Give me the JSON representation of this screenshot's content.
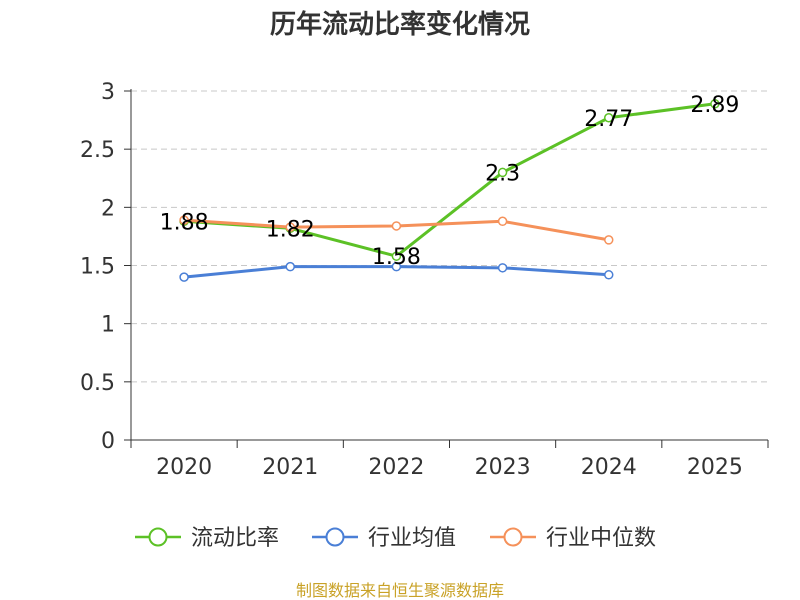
{
  "chart_data": {
    "type": "line",
    "title": "历年流动比率变化情况",
    "categories": [
      "2020",
      "2021",
      "2022",
      "2023",
      "2024",
      "2025"
    ],
    "ylim": [
      0,
      3
    ],
    "yticks": [
      "0",
      "0.5",
      "1",
      "1.5",
      "2",
      "2.5",
      "3"
    ],
    "grid": true,
    "legend_position": "bottom",
    "series": [
      {
        "name": "流动比率",
        "color": "#5cc126",
        "values": [
          1.88,
          1.82,
          1.58,
          2.3,
          2.77,
          2.89
        ],
        "labels": [
          "1.88",
          "1.82",
          "1.58",
          "2.3",
          "2.77",
          "2.89"
        ]
      },
      {
        "name": "行业均值",
        "color": "#4a7fd6",
        "values": [
          1.4,
          1.49,
          1.49,
          1.48,
          1.42,
          null
        ]
      },
      {
        "name": "行业中位数",
        "color": "#f5915a",
        "values": [
          1.89,
          1.83,
          1.84,
          1.88,
          1.72,
          null
        ]
      }
    ]
  },
  "footer": {
    "source": "制图数据来自恒生聚源数据库"
  }
}
